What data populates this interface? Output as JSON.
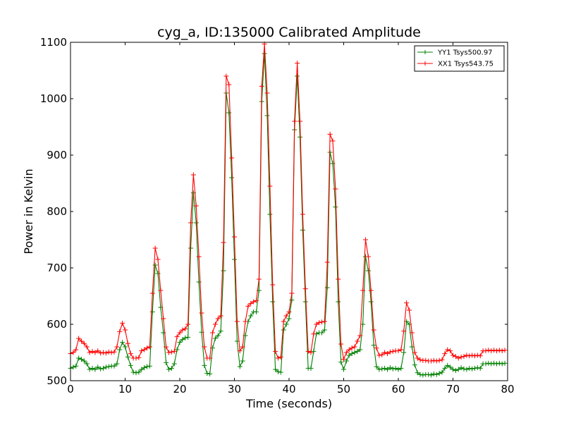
{
  "chart_data": {
    "type": "line",
    "title": "cyg_a, ID:135000 Calibrated Amplitude",
    "xlabel": "Time (seconds)",
    "ylabel": "Power in Kelvin",
    "xlim": [
      0,
      80
    ],
    "ylim": [
      500,
      1100
    ],
    "xticks": [
      0,
      10,
      20,
      30,
      40,
      50,
      60,
      70,
      80
    ],
    "yticks": [
      500,
      600,
      700,
      800,
      900,
      1000,
      1100
    ],
    "grid": false,
    "legend_position": "top-right",
    "markers": "plus",
    "series": [
      {
        "name": "YY1 Tsys500.97",
        "color": "#008000",
        "points": [
          [
            0,
            522
          ],
          [
            0.5,
            524
          ],
          [
            1,
            526
          ],
          [
            1.5,
            540
          ],
          [
            2,
            538
          ],
          [
            2.5,
            535
          ],
          [
            3,
            530
          ],
          [
            3.5,
            520
          ],
          [
            4,
            522
          ],
          [
            4.5,
            520
          ],
          [
            5,
            524
          ],
          [
            5.5,
            521
          ],
          [
            6,
            522
          ],
          [
            6.5,
            524
          ],
          [
            7,
            525
          ],
          [
            7.5,
            526
          ],
          [
            8,
            526
          ],
          [
            8.5,
            530
          ],
          [
            9,
            555
          ],
          [
            9.5,
            568
          ],
          [
            10,
            560
          ],
          [
            10.5,
            542
          ],
          [
            11,
            527
          ],
          [
            11.5,
            515
          ],
          [
            12,
            514
          ],
          [
            12.5,
            515
          ],
          [
            13,
            520
          ],
          [
            13.5,
            523
          ],
          [
            14,
            525
          ],
          [
            14.5,
            526
          ],
          [
            15,
            622
          ],
          [
            15.5,
            705
          ],
          [
            16,
            690
          ],
          [
            16.5,
            630
          ],
          [
            17,
            585
          ],
          [
            17.5,
            532
          ],
          [
            18,
            520
          ],
          [
            18.5,
            522
          ],
          [
            19,
            530
          ],
          [
            19.5,
            555
          ],
          [
            20,
            568
          ],
          [
            20.5,
            573
          ],
          [
            21,
            576
          ],
          [
            21.5,
            577
          ],
          [
            22,
            735
          ],
          [
            22.5,
            833
          ],
          [
            23,
            780
          ],
          [
            23.5,
            675
          ],
          [
            24,
            586
          ],
          [
            24.5,
            527
          ],
          [
            25,
            513
          ],
          [
            25.5,
            512
          ],
          [
            26,
            558
          ],
          [
            26.5,
            575
          ],
          [
            27,
            580
          ],
          [
            27.5,
            588
          ],
          [
            28,
            695
          ],
          [
            28.5,
            1010
          ],
          [
            29,
            975
          ],
          [
            29.5,
            860
          ],
          [
            30,
            715
          ],
          [
            30.5,
            570
          ],
          [
            31,
            525
          ],
          [
            31.5,
            535
          ],
          [
            32,
            580
          ],
          [
            32.5,
            605
          ],
          [
            33,
            615
          ],
          [
            33.5,
            622
          ],
          [
            34,
            622
          ],
          [
            34.5,
            660
          ],
          [
            35,
            995
          ],
          [
            35.5,
            1080
          ],
          [
            36,
            970
          ],
          [
            36.5,
            795
          ],
          [
            37,
            640
          ],
          [
            37.5,
            520
          ],
          [
            38,
            516
          ],
          [
            38.5,
            515
          ],
          [
            39,
            590
          ],
          [
            39.5,
            600
          ],
          [
            40,
            610
          ],
          [
            40.5,
            643
          ],
          [
            41,
            945
          ],
          [
            41.5,
            1040
          ],
          [
            42,
            932
          ],
          [
            42.5,
            767
          ],
          [
            43,
            640
          ],
          [
            43.5,
            522
          ],
          [
            44,
            522
          ],
          [
            44.5,
            552
          ],
          [
            45,
            583
          ],
          [
            45.5,
            585
          ],
          [
            46,
            585
          ],
          [
            46.5,
            590
          ],
          [
            47,
            665
          ],
          [
            47.5,
            905
          ],
          [
            48,
            885
          ],
          [
            48.5,
            808
          ],
          [
            49,
            640
          ],
          [
            49.5,
            533
          ],
          [
            50,
            520
          ],
          [
            50.5,
            535
          ],
          [
            51,
            545
          ],
          [
            51.5,
            548
          ],
          [
            52,
            550
          ],
          [
            52.5,
            552
          ],
          [
            53,
            555
          ],
          [
            53.5,
            600
          ],
          [
            54,
            720
          ],
          [
            54.5,
            695
          ],
          [
            55,
            640
          ],
          [
            55.5,
            563
          ],
          [
            56,
            525
          ],
          [
            56.5,
            520
          ],
          [
            57,
            521
          ],
          [
            57.5,
            522
          ],
          [
            58,
            520
          ],
          [
            58.5,
            523
          ],
          [
            59,
            521
          ],
          [
            59.5,
            522
          ],
          [
            60,
            520
          ],
          [
            60.5,
            522
          ],
          [
            61,
            550
          ],
          [
            61.5,
            605
          ],
          [
            62,
            600
          ],
          [
            62.5,
            560
          ],
          [
            63,
            528
          ],
          [
            63.5,
            514
          ],
          [
            64,
            511
          ],
          [
            64.5,
            510
          ],
          [
            65,
            511
          ],
          [
            65.5,
            511
          ],
          [
            66,
            510
          ],
          [
            66.5,
            512
          ],
          [
            67,
            511
          ],
          [
            67.5,
            513
          ],
          [
            68,
            515
          ],
          [
            68.5,
            522
          ],
          [
            69,
            527
          ],
          [
            69.5,
            524
          ],
          [
            70,
            520
          ],
          [
            70.5,
            518
          ],
          [
            71,
            520
          ],
          [
            71.5,
            523
          ],
          [
            72,
            521
          ],
          [
            72.5,
            520
          ],
          [
            73,
            522
          ],
          [
            73.5,
            521
          ],
          [
            74,
            522
          ],
          [
            74.5,
            523
          ],
          [
            75,
            522
          ],
          [
            75.5,
            530
          ],
          [
            76,
            530
          ],
          [
            76.5,
            531
          ],
          [
            77,
            530
          ],
          [
            77.5,
            531
          ],
          [
            78,
            530
          ],
          [
            78.5,
            531
          ],
          [
            79,
            530
          ],
          [
            79.5,
            531
          ]
        ]
      },
      {
        "name": "XX1 Tsys543.75",
        "color": "#ff0000",
        "points": [
          [
            0,
            548
          ],
          [
            0.5,
            550
          ],
          [
            1,
            555
          ],
          [
            1.5,
            575
          ],
          [
            2,
            570
          ],
          [
            2.5,
            566
          ],
          [
            3,
            560
          ],
          [
            3.5,
            550
          ],
          [
            4,
            552
          ],
          [
            4.5,
            550
          ],
          [
            5,
            553
          ],
          [
            5.5,
            549
          ],
          [
            6,
            550
          ],
          [
            6.5,
            549
          ],
          [
            7,
            551
          ],
          [
            7.5,
            550
          ],
          [
            8,
            551
          ],
          [
            8.5,
            560
          ],
          [
            9,
            587
          ],
          [
            9.5,
            602
          ],
          [
            10,
            590
          ],
          [
            10.5,
            566
          ],
          [
            11,
            548
          ],
          [
            11.5,
            540
          ],
          [
            12,
            540
          ],
          [
            12.5,
            541
          ],
          [
            13,
            553
          ],
          [
            13.5,
            555
          ],
          [
            14,
            558
          ],
          [
            14.5,
            560
          ],
          [
            15,
            655
          ],
          [
            15.5,
            735
          ],
          [
            16,
            715
          ],
          [
            16.5,
            660
          ],
          [
            17,
            610
          ],
          [
            17.5,
            560
          ],
          [
            18,
            550
          ],
          [
            18.5,
            551
          ],
          [
            19,
            552
          ],
          [
            19.5,
            578
          ],
          [
            20,
            585
          ],
          [
            20.5,
            590
          ],
          [
            21,
            592
          ],
          [
            21.5,
            600
          ],
          [
            22,
            780
          ],
          [
            22.5,
            865
          ],
          [
            23,
            810
          ],
          [
            23.5,
            720
          ],
          [
            24,
            620
          ],
          [
            24.5,
            560
          ],
          [
            25,
            540
          ],
          [
            25.5,
            540
          ],
          [
            26,
            585
          ],
          [
            26.5,
            600
          ],
          [
            27,
            610
          ],
          [
            27.5,
            615
          ],
          [
            28,
            745
          ],
          [
            28.5,
            1040
          ],
          [
            29,
            1025
          ],
          [
            29.5,
            895
          ],
          [
            30,
            755
          ],
          [
            30.5,
            605
          ],
          [
            31,
            553
          ],
          [
            31.5,
            560
          ],
          [
            32,
            605
          ],
          [
            32.5,
            632
          ],
          [
            33,
            637
          ],
          [
            33.5,
            640
          ],
          [
            34,
            642
          ],
          [
            34.5,
            680
          ],
          [
            35,
            1022
          ],
          [
            35.5,
            1097
          ],
          [
            36,
            1010
          ],
          [
            36.5,
            845
          ],
          [
            37,
            670
          ],
          [
            37.5,
            552
          ],
          [
            38,
            540
          ],
          [
            38.5,
            542
          ],
          [
            39,
            605
          ],
          [
            39.5,
            615
          ],
          [
            40,
            622
          ],
          [
            40.5,
            655
          ],
          [
            41,
            960
          ],
          [
            41.5,
            1063
          ],
          [
            42,
            960
          ],
          [
            42.5,
            795
          ],
          [
            43,
            663
          ],
          [
            43.5,
            552
          ],
          [
            44,
            550
          ],
          [
            44.5,
            583
          ],
          [
            45,
            600
          ],
          [
            45.5,
            603
          ],
          [
            46,
            604
          ],
          [
            46.5,
            605
          ],
          [
            47,
            710
          ],
          [
            47.5,
            937
          ],
          [
            48,
            925
          ],
          [
            48.5,
            840
          ],
          [
            49,
            680
          ],
          [
            49.5,
            565
          ],
          [
            50,
            538
          ],
          [
            50.5,
            550
          ],
          [
            51,
            555
          ],
          [
            51.5,
            558
          ],
          [
            52,
            560
          ],
          [
            52.5,
            570
          ],
          [
            53,
            580
          ],
          [
            53.5,
            660
          ],
          [
            54,
            750
          ],
          [
            54.5,
            720
          ],
          [
            55,
            660
          ],
          [
            55.5,
            590
          ],
          [
            56,
            558
          ],
          [
            56.5,
            545
          ],
          [
            57,
            546
          ],
          [
            57.5,
            550
          ],
          [
            58,
            548
          ],
          [
            58.5,
            551
          ],
          [
            59,
            552
          ],
          [
            59.5,
            553
          ],
          [
            60,
            553
          ],
          [
            60.5,
            555
          ],
          [
            61,
            588
          ],
          [
            61.5,
            638
          ],
          [
            62,
            625
          ],
          [
            62.5,
            585
          ],
          [
            63,
            550
          ],
          [
            63.5,
            540
          ],
          [
            64,
            537
          ],
          [
            64.5,
            536
          ],
          [
            65,
            536
          ],
          [
            65.5,
            535
          ],
          [
            66,
            535
          ],
          [
            66.5,
            536
          ],
          [
            67,
            535
          ],
          [
            67.5,
            536
          ],
          [
            68,
            537
          ],
          [
            68.5,
            548
          ],
          [
            69,
            555
          ],
          [
            69.5,
            553
          ],
          [
            70,
            545
          ],
          [
            70.5,
            543
          ],
          [
            71,
            540
          ],
          [
            71.5,
            542
          ],
          [
            72,
            543
          ],
          [
            72.5,
            545
          ],
          [
            73,
            544
          ],
          [
            73.5,
            545
          ],
          [
            74,
            544
          ],
          [
            74.5,
            545
          ],
          [
            75,
            544
          ],
          [
            75.5,
            553
          ],
          [
            76,
            553
          ],
          [
            76.5,
            554
          ],
          [
            77,
            553
          ],
          [
            77.5,
            554
          ],
          [
            78,
            553
          ],
          [
            78.5,
            554
          ],
          [
            79,
            553
          ],
          [
            79.5,
            554
          ]
        ]
      }
    ]
  }
}
